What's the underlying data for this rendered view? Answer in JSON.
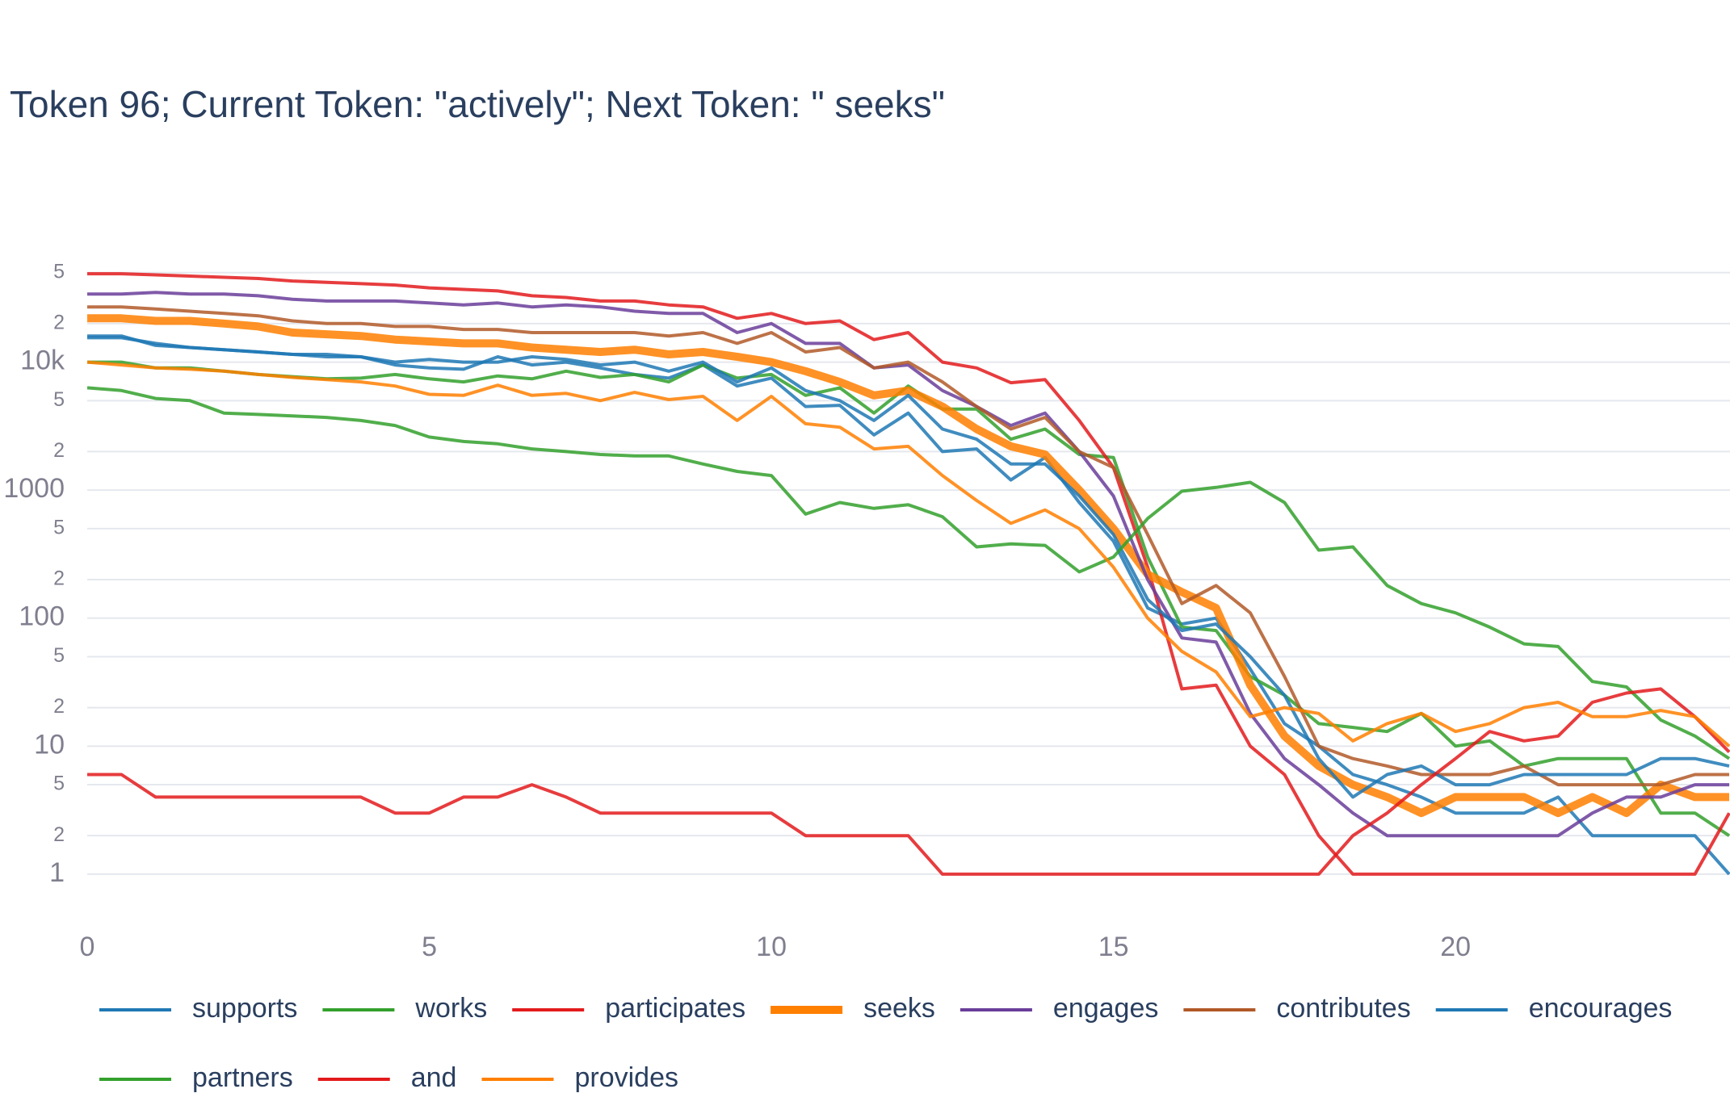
{
  "chart_data": {
    "type": "line",
    "title": "Token 96; Current Token: \"actively\"; Next Token: \" seeks\"",
    "log_y": true,
    "grid": true,
    "x": [
      0,
      0.5,
      1,
      1.5,
      2,
      2.5,
      3,
      3.5,
      4,
      4.5,
      5,
      5.5,
      6,
      6.5,
      7,
      7.5,
      8,
      8.5,
      9,
      9.5,
      10,
      10.5,
      11,
      11.5,
      12,
      12.5,
      13,
      13.5,
      14,
      14.5,
      15,
      15.5,
      16,
      16.5,
      17,
      17.5,
      18,
      18.5,
      19,
      19.5,
      20,
      20.5,
      21,
      21.5,
      22,
      22.5,
      23,
      23.5,
      24
    ],
    "xlim": [
      0,
      24
    ],
    "xticks": [
      0,
      5,
      10,
      15,
      20
    ],
    "ylim": [
      0.4,
      100000
    ],
    "yticks": [
      1,
      {
        "value": 2,
        "label": "2"
      },
      {
        "value": 5,
        "label": "5"
      },
      10,
      {
        "value": 20,
        "label": "2"
      },
      {
        "value": 50,
        "label": "5"
      },
      100,
      {
        "value": 200,
        "label": "2"
      },
      {
        "value": 500,
        "label": "5"
      },
      1000,
      {
        "value": 2000,
        "label": "2"
      },
      {
        "value": 5000,
        "label": "5"
      },
      {
        "value": 10000,
        "label": "10k"
      },
      {
        "value": 20000,
        "label": "2"
      },
      {
        "value": 50000,
        "label": "5"
      }
    ],
    "series": [
      {
        "name": "supports",
        "color": "#1f78b4",
        "width": 4,
        "values": [
          16000,
          16000,
          13500,
          13000,
          12500,
          12000,
          11500,
          11000,
          11000,
          9500,
          9000,
          8800,
          11000,
          9500,
          10000,
          9000,
          8000,
          7500,
          9500,
          6500,
          7500,
          4500,
          4600,
          2700,
          4000,
          2000,
          2100,
          1200,
          1800,
          800,
          400,
          120,
          90,
          100,
          40,
          15,
          10,
          6,
          5,
          4,
          3,
          3,
          3,
          4,
          2,
          2,
          2,
          2,
          1
        ]
      },
      {
        "name": "works",
        "color": "#33a02c",
        "width": 4,
        "values": [
          10000,
          10000,
          9000,
          9000,
          8500,
          8000,
          7700,
          7400,
          7500,
          8000,
          7400,
          7000,
          7800,
          7400,
          8500,
          7600,
          8000,
          7000,
          9500,
          7500,
          8000,
          5500,
          6300,
          4000,
          6500,
          4300,
          4300,
          2500,
          3000,
          1900,
          1800,
          300,
          85,
          80,
          35,
          25,
          15,
          14,
          13,
          18,
          10,
          11,
          7,
          8,
          8,
          8,
          3,
          3,
          2
        ]
      },
      {
        "name": "participates",
        "color": "#e31a1c",
        "width": 4,
        "values": [
          49000,
          49000,
          48000,
          47000,
          46000,
          45000,
          43000,
          42000,
          41000,
          40000,
          38000,
          37000,
          36000,
          33000,
          32000,
          30000,
          30000,
          28000,
          27000,
          22000,
          24000,
          20000,
          21000,
          15000,
          17000,
          10000,
          9000,
          6900,
          7300,
          3500,
          1500,
          250,
          28,
          30,
          10,
          6,
          2,
          1,
          1,
          1,
          1,
          1,
          1,
          1,
          1,
          1,
          1,
          1,
          3
        ]
      },
      {
        "name": "seeks",
        "color": "#ff7f00",
        "width": 10,
        "values": [
          22000,
          22000,
          21000,
          21000,
          20000,
          19000,
          17000,
          16500,
          16000,
          15000,
          14500,
          14000,
          14000,
          13000,
          12500,
          12000,
          12500,
          11500,
          12000,
          11000,
          10000,
          8500,
          7000,
          5500,
          6000,
          4500,
          3000,
          2200,
          1900,
          1000,
          500,
          220,
          160,
          120,
          30,
          12,
          7,
          5,
          4,
          3,
          4,
          4,
          4,
          3,
          4,
          3,
          5,
          4,
          4
        ]
      },
      {
        "name": "engages",
        "color": "#6a3d9a",
        "width": 4,
        "values": [
          34000,
          34000,
          35000,
          34000,
          34000,
          33000,
          31000,
          30000,
          30000,
          30000,
          29000,
          28000,
          29000,
          27000,
          28000,
          27000,
          25000,
          24000,
          24000,
          17000,
          20000,
          14000,
          14000,
          9000,
          9500,
          6000,
          4500,
          3200,
          4000,
          2000,
          900,
          200,
          70,
          65,
          18,
          8,
          5,
          3,
          2,
          2,
          2,
          2,
          2,
          2,
          3,
          4,
          4,
          5,
          5
        ]
      },
      {
        "name": "contributes",
        "color": "#b15928",
        "width": 4,
        "values": [
          27000,
          27000,
          26000,
          25000,
          24000,
          23000,
          21000,
          20000,
          20000,
          19000,
          19000,
          18000,
          18000,
          17000,
          17000,
          17000,
          17000,
          16000,
          17000,
          14000,
          17000,
          12000,
          13000,
          9000,
          10000,
          7000,
          4500,
          3000,
          3700,
          2000,
          1500,
          450,
          130,
          180,
          110,
          35,
          10,
          8,
          7,
          6,
          6,
          6,
          7,
          5,
          5,
          5,
          5,
          6,
          6
        ]
      },
      {
        "name": "encourages",
        "color": "#1f78b4",
        "width": 4,
        "values": [
          15500,
          15500,
          14000,
          13000,
          12500,
          12000,
          11500,
          11500,
          11000,
          10000,
          10500,
          10000,
          10000,
          11000,
          10500,
          9500,
          10000,
          8500,
          10000,
          7000,
          9000,
          6000,
          5000,
          3500,
          5500,
          3000,
          2500,
          1600,
          1600,
          900,
          450,
          140,
          80,
          90,
          50,
          25,
          8,
          4,
          6,
          7,
          5,
          5,
          6,
          6,
          6,
          6,
          8,
          8,
          7
        ]
      },
      {
        "name": "partners",
        "color": "#33a02c",
        "width": 4,
        "values": [
          6300,
          6000,
          5200,
          5000,
          4000,
          3900,
          3800,
          3700,
          3500,
          3200,
          2600,
          2400,
          2300,
          2100,
          2000,
          1900,
          1850,
          1850,
          1600,
          1400,
          1300,
          650,
          800,
          720,
          770,
          620,
          360,
          380,
          370,
          230,
          300,
          600,
          980,
          1050,
          1150,
          800,
          340,
          360,
          180,
          130,
          110,
          85,
          63,
          60,
          32,
          29,
          16,
          12,
          8
        ]
      },
      {
        "name": "and",
        "color": "#e31a1c",
        "width": 4,
        "values": [
          6,
          6,
          4,
          4,
          4,
          4,
          4,
          4,
          4,
          3,
          3,
          4,
          4,
          5,
          4,
          3,
          3,
          3,
          3,
          3,
          3,
          2,
          2,
          2,
          2,
          1,
          1,
          1,
          1,
          1,
          1,
          1,
          1,
          1,
          1,
          1,
          1,
          2,
          3,
          5,
          8,
          13,
          11,
          12,
          22,
          26,
          28,
          17,
          9
        ]
      },
      {
        "name": "provides",
        "color": "#ff7f00",
        "width": 4,
        "values": [
          10000,
          9500,
          9000,
          8800,
          8500,
          8000,
          7600,
          7300,
          7000,
          6500,
          5600,
          5500,
          6600,
          5500,
          5700,
          5000,
          5800,
          5100,
          5400,
          3500,
          5400,
          3300,
          3100,
          2100,
          2200,
          1300,
          830,
          550,
          700,
          500,
          250,
          100,
          55,
          38,
          17,
          20,
          18,
          11,
          15,
          18,
          13,
          15,
          20,
          22,
          17,
          17,
          19,
          17,
          10
        ]
      }
    ]
  }
}
